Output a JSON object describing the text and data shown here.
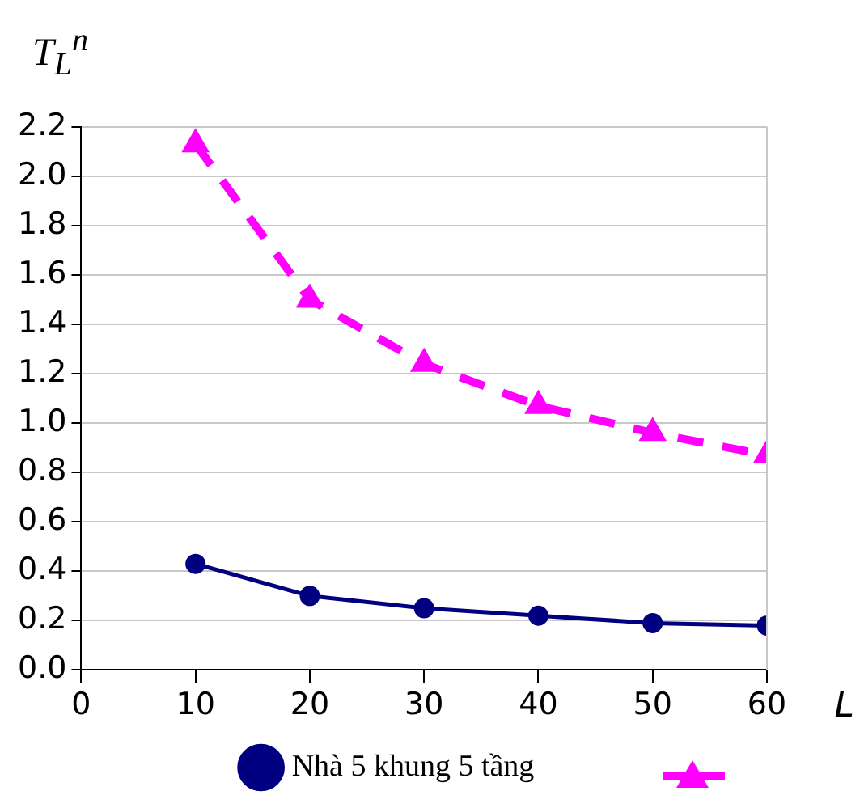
{
  "chart_data": {
    "type": "line",
    "ylabel": "T$_{L}$$^{n}$",
    "xlabel": "L",
    "x": [
      10,
      20,
      30,
      40,
      50,
      60
    ],
    "series": [
      {
        "name": "Nhà 5 khung 5 tầng",
        "color": "#000080",
        "values": [
          0.43,
          0.3,
          0.25,
          0.22,
          0.19,
          0.18
        ],
        "marker": "circle",
        "line_style": "solid"
      },
      {
        "color": "#ff00ff",
        "values": [
          2.13,
          1.5,
          1.24,
          1.07,
          0.96,
          0.87
        ],
        "marker": "triangle",
        "line_style": "dashed"
      }
    ],
    "xlim": [
      0,
      60
    ],
    "xticks": [
      0,
      10,
      20,
      30,
      40,
      50,
      60
    ],
    "ylim": [
      0,
      2.2
    ],
    "yticks": [
      {
        "value": 0,
        "label": "0.0"
      },
      0.2,
      0.4,
      0.6,
      0.8,
      {
        "value": 1,
        "label": "1.0"
      },
      1.2,
      1.4,
      1.6,
      1.8,
      {
        "value": 2,
        "label": "2.0"
      },
      2.2
    ],
    "grid": "y",
    "legend": "bottom"
  }
}
